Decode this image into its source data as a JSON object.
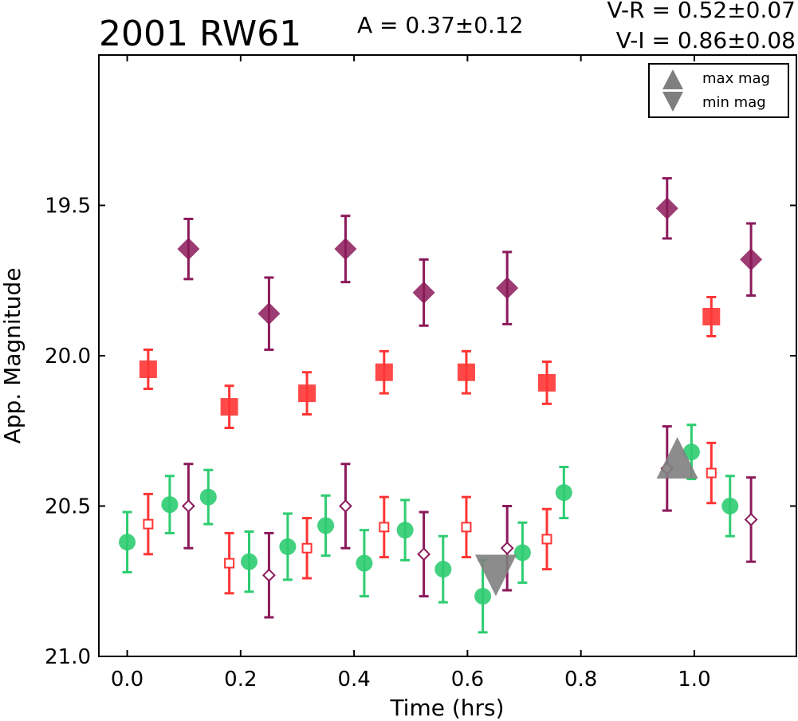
{
  "chart_data": {
    "type": "scatter",
    "title": "2001 RW61",
    "amplitude_text": "A  = 0.37±0.12",
    "color_vr_text": "V-R = 0.52±0.07",
    "color_vi_text": "V-I  = 0.86±0.08",
    "xlabel": "Time (hrs)",
    "ylabel": "App. Magnitude",
    "xlim": [
      -0.05,
      1.18
    ],
    "ylim": [
      21.0,
      19.0
    ],
    "y_inverted": true,
    "grid": false,
    "xticks": [
      0.0,
      0.2,
      0.4,
      0.6,
      0.8,
      1.0
    ],
    "xtick_labels": [
      "0.0",
      "0.2",
      "0.4",
      "0.6",
      "0.8",
      "1.0"
    ],
    "yticks": [
      19.5,
      20.0,
      20.5,
      21.0
    ],
    "ytick_labels": [
      "19.5",
      "20.0",
      "20.5",
      "21.0"
    ],
    "legend": {
      "position": "top-right",
      "entries": [
        {
          "label": "max mag",
          "marker": "triangle-up",
          "color": "#7f7f7f"
        },
        {
          "label": "min mag",
          "marker": "triangle-down",
          "color": "#7f7f7f"
        }
      ]
    },
    "series": [
      {
        "marker": "filled-diamond",
        "color": "#8b1a5a",
        "x": [
          0.108,
          0.25,
          0.385,
          0.523,
          0.67,
          0.952,
          1.1
        ],
        "y": [
          19.645,
          19.86,
          19.645,
          19.79,
          19.775,
          19.51,
          19.68
        ],
        "yerr": [
          0.1,
          0.12,
          0.11,
          0.11,
          0.12,
          0.1,
          0.12
        ]
      },
      {
        "marker": "filled-square",
        "color": "#ff3535",
        "x": [
          0.037,
          0.18,
          0.317,
          0.453,
          0.598,
          0.74,
          1.03
        ],
        "y": [
          20.045,
          20.17,
          20.125,
          20.055,
          20.055,
          20.09,
          19.87
        ],
        "yerr": [
          0.065,
          0.07,
          0.07,
          0.07,
          0.07,
          0.07,
          0.065
        ]
      },
      {
        "marker": "filled-circle",
        "color": "#2ecc71",
        "x": [
          0.0,
          0.075,
          0.143,
          0.215,
          0.283,
          0.35,
          0.418,
          0.49,
          0.557,
          0.627,
          0.697,
          0.77,
          0.995,
          1.063
        ],
        "y": [
          20.62,
          20.495,
          20.47,
          20.685,
          20.635,
          20.565,
          20.69,
          20.58,
          20.71,
          20.8,
          20.655,
          20.455,
          20.32,
          20.5
        ],
        "yerr": [
          0.1,
          0.095,
          0.09,
          0.1,
          0.11,
          0.1,
          0.11,
          0.1,
          0.11,
          0.12,
          0.1,
          0.085,
          0.09,
          0.1
        ]
      },
      {
        "marker": "hollow-square",
        "color": "#ff3535",
        "x": [
          0.037,
          0.18,
          0.317,
          0.453,
          0.598,
          0.74,
          1.03
        ],
        "y": [
          20.56,
          20.69,
          20.64,
          20.57,
          20.57,
          20.61,
          20.39
        ],
        "yerr": [
          0.1,
          0.1,
          0.1,
          0.1,
          0.1,
          0.1,
          0.1
        ]
      },
      {
        "marker": "hollow-diamond",
        "color": "#8b1a5a",
        "x": [
          0.108,
          0.25,
          0.385,
          0.523,
          0.67,
          0.952,
          1.1
        ],
        "y": [
          20.5,
          20.73,
          20.5,
          20.66,
          20.64,
          20.375,
          20.545
        ],
        "yerr": [
          0.14,
          0.14,
          0.14,
          0.14,
          0.14,
          0.14,
          0.14
        ]
      },
      {
        "name": "max mag",
        "marker": "triangle-up",
        "color": "#7f7f7f",
        "x": [
          0.97
        ],
        "y": [
          20.35
        ],
        "yerr": [
          0
        ]
      },
      {
        "name": "min mag",
        "marker": "triangle-down",
        "color": "#7f7f7f",
        "x": [
          0.65
        ],
        "y": [
          20.72
        ],
        "yerr": [
          0
        ]
      }
    ]
  }
}
